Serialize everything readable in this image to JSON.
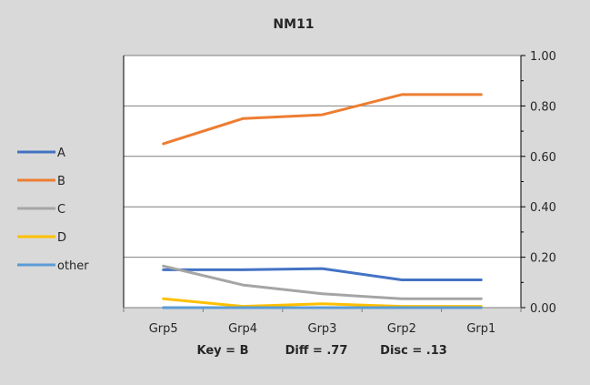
{
  "chart_data": {
    "type": "line",
    "title": "NM11",
    "categories": [
      "Grp5",
      "Grp4",
      "Grp3",
      "Grp2",
      "Grp1"
    ],
    "ylim": [
      0,
      1
    ],
    "yticks": [
      "0.00",
      "0.20",
      "0.40",
      "0.60",
      "0.80",
      "1.00"
    ],
    "grid": true,
    "legend_position": "left",
    "series": [
      {
        "name": "A",
        "color": "#4472c4",
        "values": [
          0.15,
          0.15,
          0.155,
          0.11,
          0.11
        ]
      },
      {
        "name": "B",
        "color": "#ed7d31",
        "values": [
          0.65,
          0.75,
          0.765,
          0.845,
          0.845
        ]
      },
      {
        "name": "C",
        "color": "#a5a5a5",
        "values": [
          0.165,
          0.09,
          0.055,
          0.035,
          0.035
        ]
      },
      {
        "name": "D",
        "color": "#ffc000",
        "values": [
          0.035,
          0.005,
          0.015,
          0.005,
          0.005
        ]
      },
      {
        "name": "other",
        "color": "#5b9bd5",
        "values": [
          0.0,
          0.0,
          0.0,
          0.0,
          0.0
        ]
      }
    ]
  },
  "footer": {
    "key": "Key = B",
    "diff": "Diff = .77",
    "disc": "Disc = .13"
  }
}
